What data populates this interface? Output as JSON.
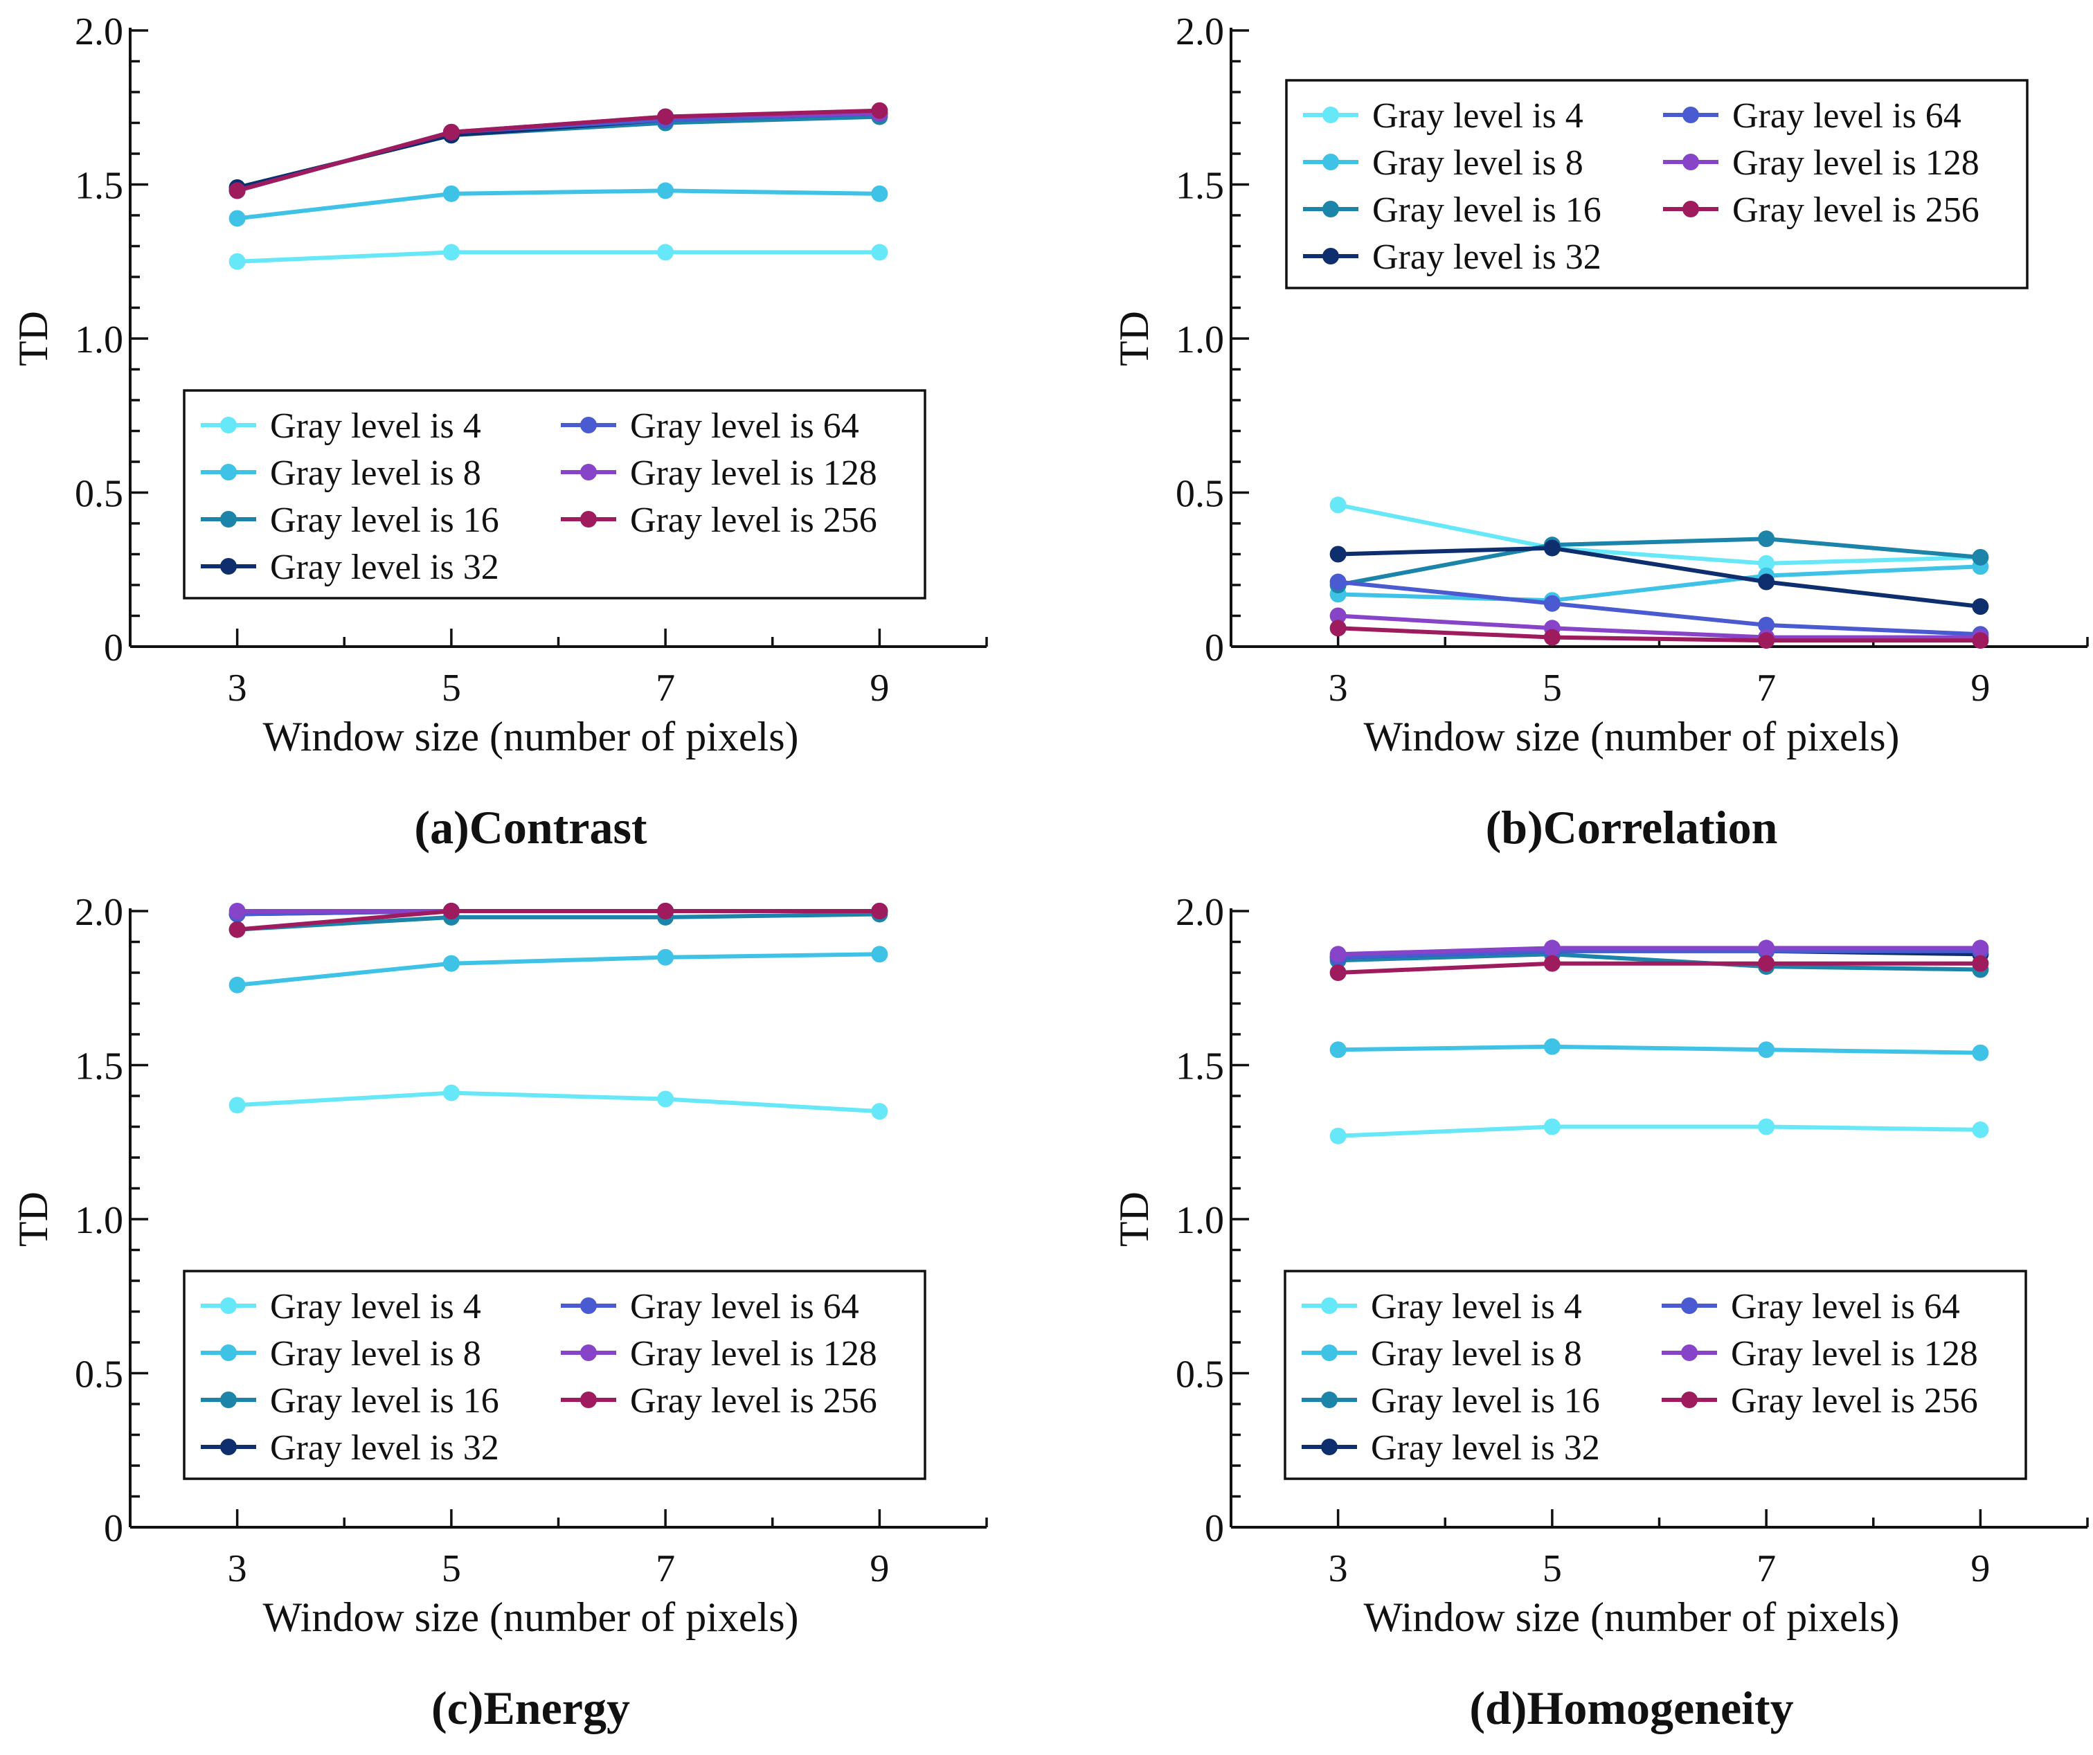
{
  "chart_data": [
    {
      "type": "line",
      "caption": "(a)Contrast",
      "xlabel": "Window size (number of pixels)",
      "ylabel": "TD",
      "x": [
        3,
        5,
        7,
        9
      ],
      "x_ticks": [
        "3",
        "5",
        "7",
        "9"
      ],
      "xlim": [
        2,
        10
      ],
      "ylim": [
        0,
        2.0
      ],
      "y_ticks": [
        "0",
        "0.5",
        "1.0",
        "1.5",
        "2.0"
      ],
      "legend_position": "lower-center",
      "series": [
        {
          "name": "Gray level is 4",
          "color": "#66e8f8",
          "values": [
            1.25,
            1.28,
            1.28,
            1.28
          ]
        },
        {
          "name": "Gray level is 8",
          "color": "#3ec2e6",
          "values": [
            1.39,
            1.47,
            1.48,
            1.47
          ]
        },
        {
          "name": "Gray level is 16",
          "color": "#1b84a8",
          "values": [
            1.49,
            1.66,
            1.7,
            1.72
          ]
        },
        {
          "name": "Gray level is 32",
          "color": "#0e2e6e",
          "values": [
            1.49,
            1.66,
            1.71,
            1.73
          ]
        },
        {
          "name": "Gray level is 64",
          "color": "#4a5ad0",
          "values": [
            1.48,
            1.67,
            1.71,
            1.73
          ]
        },
        {
          "name": "Gray level is 128",
          "color": "#8844c8",
          "values": [
            1.48,
            1.67,
            1.72,
            1.73
          ]
        },
        {
          "name": "Gray level is 256",
          "color": "#9e1b5e",
          "values": [
            1.48,
            1.67,
            1.72,
            1.74
          ]
        }
      ]
    },
    {
      "type": "line",
      "caption": "(b)Correlation",
      "xlabel": "Window size (number of pixels)",
      "ylabel": "TD",
      "x": [
        3,
        5,
        7,
        9
      ],
      "x_ticks": [
        "3",
        "5",
        "7",
        "9"
      ],
      "xlim": [
        2,
        10
      ],
      "ylim": [
        0,
        2.0
      ],
      "y_ticks": [
        "0",
        "0.5",
        "1.0",
        "1.5",
        "2.0"
      ],
      "legend_position": "top-left",
      "series": [
        {
          "name": "Gray level is 4",
          "color": "#66e8f8",
          "values": [
            0.46,
            0.32,
            0.27,
            0.29
          ]
        },
        {
          "name": "Gray level is 8",
          "color": "#3ec2e6",
          "values": [
            0.17,
            0.15,
            0.23,
            0.26
          ]
        },
        {
          "name": "Gray level is 16",
          "color": "#1b84a8",
          "values": [
            0.2,
            0.33,
            0.35,
            0.29
          ]
        },
        {
          "name": "Gray level is 32",
          "color": "#0e2e6e",
          "values": [
            0.3,
            0.32,
            0.21,
            0.13
          ]
        },
        {
          "name": "Gray level is 64",
          "color": "#4a5ad0",
          "values": [
            0.21,
            0.14,
            0.07,
            0.04
          ]
        },
        {
          "name": "Gray level is 128",
          "color": "#8844c8",
          "values": [
            0.1,
            0.06,
            0.03,
            0.03
          ]
        },
        {
          "name": "Gray level is 256",
          "color": "#9e1b5e",
          "values": [
            0.06,
            0.03,
            0.02,
            0.02
          ]
        }
      ]
    },
    {
      "type": "line",
      "caption": "(c)Energy",
      "xlabel": "Window size (number of pixels)",
      "ylabel": "TD",
      "x": [
        3,
        5,
        7,
        9
      ],
      "x_ticks": [
        "3",
        "5",
        "7",
        "9"
      ],
      "xlim": [
        2,
        10
      ],
      "ylim": [
        0,
        2.0
      ],
      "y_ticks": [
        "0",
        "0.5",
        "1.0",
        "1.5",
        "2.0"
      ],
      "legend_position": "lower-center",
      "series": [
        {
          "name": "Gray level is 4",
          "color": "#66e8f8",
          "values": [
            1.37,
            1.41,
            1.39,
            1.35
          ]
        },
        {
          "name": "Gray level is 8",
          "color": "#3ec2e6",
          "values": [
            1.76,
            1.83,
            1.85,
            1.86
          ]
        },
        {
          "name": "Gray level is 16",
          "color": "#1b84a8",
          "values": [
            1.94,
            1.98,
            1.98,
            1.99
          ]
        },
        {
          "name": "Gray level is 32",
          "color": "#0e2e6e",
          "values": [
            1.99,
            2.0,
            2.0,
            2.0
          ]
        },
        {
          "name": "Gray level is 64",
          "color": "#4a5ad0",
          "values": [
            1.99,
            2.0,
            2.0,
            2.0
          ]
        },
        {
          "name": "Gray level is 128",
          "color": "#8844c8",
          "values": [
            2.0,
            2.0,
            2.0,
            2.0
          ]
        },
        {
          "name": "Gray level is 256",
          "color": "#9e1b5e",
          "values": [
            1.94,
            2.0,
            2.0,
            2.0
          ]
        }
      ]
    },
    {
      "type": "line",
      "caption": "(d)Homogeneity",
      "xlabel": "Window size (number of pixels)",
      "ylabel": "TD",
      "x": [
        3,
        5,
        7,
        9
      ],
      "x_ticks": [
        "3",
        "5",
        "7",
        "9"
      ],
      "xlim": [
        2,
        10
      ],
      "ylim": [
        0,
        2.0
      ],
      "y_ticks": [
        "0",
        "0.5",
        "1.0",
        "1.5",
        "2.0"
      ],
      "legend_position": "lower-center",
      "series": [
        {
          "name": "Gray level is 4",
          "color": "#66e8f8",
          "values": [
            1.27,
            1.3,
            1.3,
            1.29
          ]
        },
        {
          "name": "Gray level is 8",
          "color": "#3ec2e6",
          "values": [
            1.55,
            1.56,
            1.55,
            1.54
          ]
        },
        {
          "name": "Gray level is 16",
          "color": "#1b84a8",
          "values": [
            1.84,
            1.86,
            1.82,
            1.81
          ]
        },
        {
          "name": "Gray level is 32",
          "color": "#0e2e6e",
          "values": [
            1.85,
            1.87,
            1.87,
            1.86
          ]
        },
        {
          "name": "Gray level is 64",
          "color": "#4a5ad0",
          "values": [
            1.85,
            1.87,
            1.87,
            1.87
          ]
        },
        {
          "name": "Gray level is 128",
          "color": "#8844c8",
          "values": [
            1.86,
            1.88,
            1.88,
            1.88
          ]
        },
        {
          "name": "Gray level is 256",
          "color": "#9e1b5e",
          "values": [
            1.8,
            1.83,
            1.83,
            1.83
          ]
        }
      ]
    }
  ]
}
